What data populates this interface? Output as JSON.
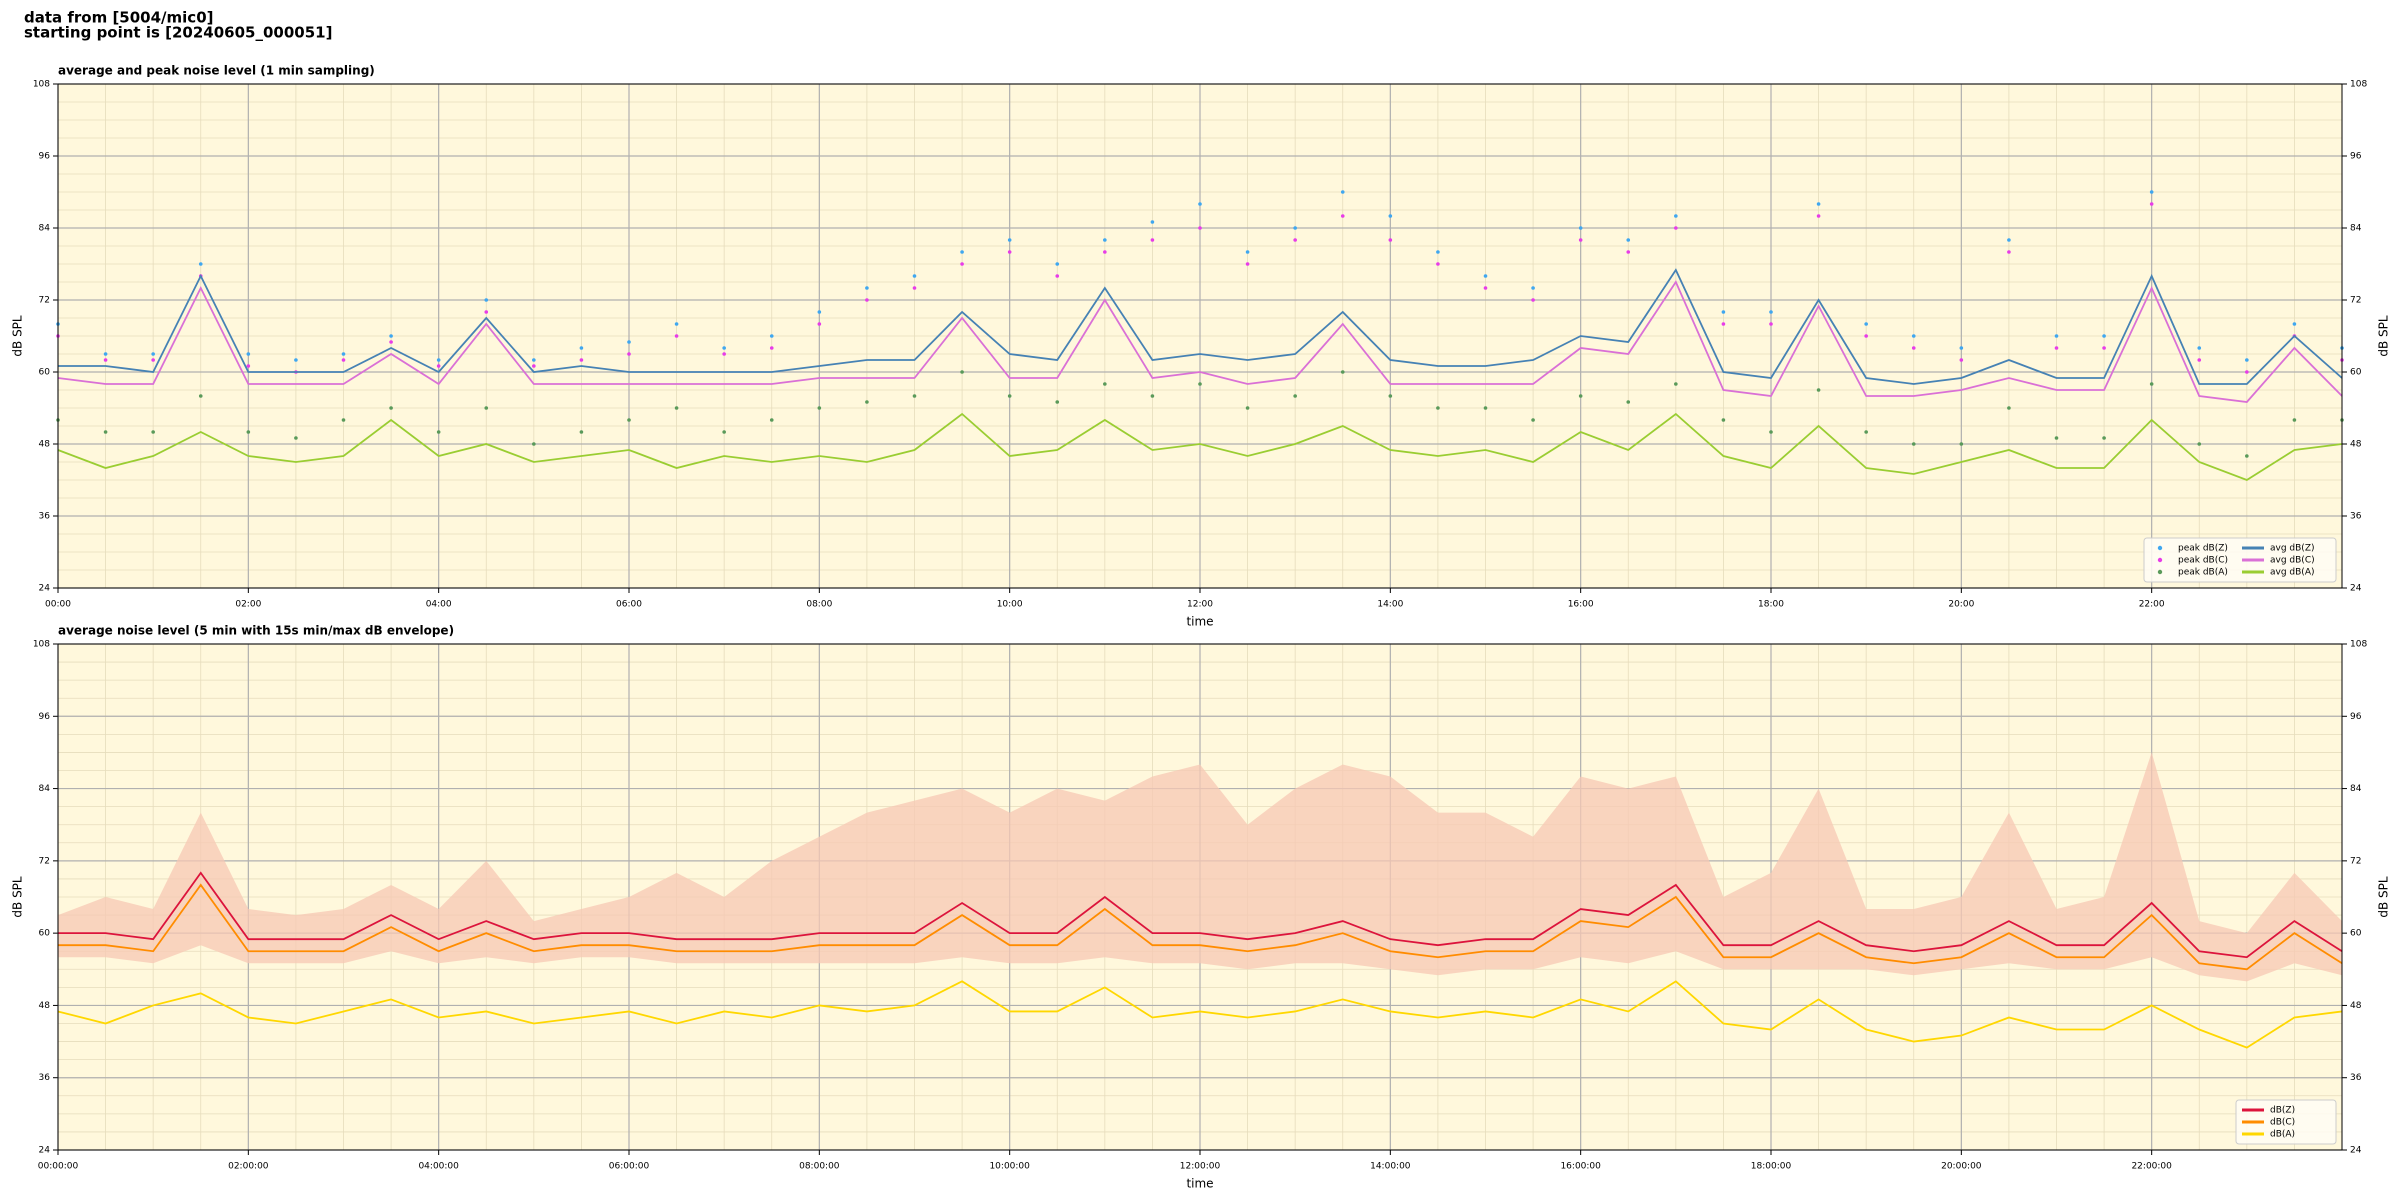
{
  "header": {
    "lines": [
      "data from [5004/mic0]",
      "starting point is [20240605_000051]"
    ]
  },
  "chart_data": [
    {
      "type": "line",
      "title": "average and peak noise level (1 min sampling)",
      "x_label": "time",
      "y_label": "dB SPL",
      "x": [
        0,
        0.5,
        1,
        1.5,
        2,
        2.5,
        3,
        3.5,
        4,
        4.5,
        5,
        5.5,
        6,
        6.5,
        7,
        7.5,
        8,
        8.5,
        9,
        9.5,
        10,
        10.5,
        11,
        11.5,
        12,
        12.5,
        13,
        13.5,
        14,
        14.5,
        15,
        15.5,
        16,
        16.5,
        17,
        17.5,
        18,
        18.5,
        19,
        19.5,
        20,
        20.5,
        21,
        21.5,
        22,
        22.5,
        23,
        23.5,
        24
      ],
      "xlim": [
        0,
        24
      ],
      "ylim": [
        24,
        108
      ],
      "yticks": [
        24,
        36,
        48,
        60,
        72,
        84,
        96,
        108
      ],
      "xticks": [
        {
          "value": 0,
          "label": "00:00"
        },
        {
          "value": 2,
          "label": "02:00"
        },
        {
          "value": 4,
          "label": "04:00"
        },
        {
          "value": 6,
          "label": "06:00"
        },
        {
          "value": 8,
          "label": "08:00"
        },
        {
          "value": 10,
          "label": "10:00"
        },
        {
          "value": 12,
          "label": "12:00"
        },
        {
          "value": 14,
          "label": "14:00"
        },
        {
          "value": 16,
          "label": "16:00"
        },
        {
          "value": 18,
          "label": "18:00"
        },
        {
          "value": 20,
          "label": "20:00"
        },
        {
          "value": 22,
          "label": "22:00"
        }
      ],
      "grid": true,
      "background": "#fff8dc",
      "legend": "lower right",
      "legend_columns": 2,
      "series": [
        {
          "name": "peak dB(Z)",
          "type": "scatter",
          "color": "#3fa7f0",
          "values": [
            68,
            63,
            63,
            78,
            63,
            62,
            63,
            66,
            62,
            72,
            62,
            64,
            65,
            68,
            64,
            66,
            70,
            74,
            76,
            80,
            82,
            78,
            82,
            85,
            88,
            80,
            84,
            90,
            86,
            80,
            76,
            74,
            84,
            82,
            86,
            70,
            70,
            88,
            68,
            66,
            64,
            82,
            66,
            66,
            90,
            64,
            62,
            68,
            64
          ]
        },
        {
          "name": "peak dB(C)",
          "type": "scatter",
          "color": "#e83ce8",
          "values": [
            66,
            62,
            62,
            76,
            61,
            60,
            62,
            65,
            61,
            70,
            61,
            62,
            63,
            66,
            63,
            64,
            68,
            72,
            74,
            78,
            80,
            76,
            80,
            82,
            84,
            78,
            82,
            86,
            82,
            78,
            74,
            72,
            82,
            80,
            84,
            68,
            68,
            86,
            66,
            64,
            62,
            80,
            64,
            64,
            88,
            62,
            60,
            66,
            62
          ]
        },
        {
          "name": "peak dB(A)",
          "type": "scatter",
          "color": "#5a9a5a",
          "values": [
            52,
            50,
            50,
            56,
            50,
            49,
            52,
            54,
            50,
            54,
            48,
            50,
            52,
            54,
            50,
            52,
            54,
            55,
            56,
            60,
            56,
            55,
            58,
            56,
            58,
            54,
            56,
            60,
            56,
            54,
            54,
            52,
            56,
            55,
            58,
            52,
            50,
            57,
            50,
            48,
            48,
            54,
            49,
            49,
            58,
            48,
            46,
            52,
            52
          ]
        },
        {
          "name": "avg dB(Z)",
          "type": "line",
          "color": "#4682b4",
          "values": [
            61,
            61,
            60,
            76,
            60,
            60,
            60,
            64,
            60,
            69,
            60,
            61,
            60,
            60,
            60,
            60,
            61,
            62,
            62,
            70,
            63,
            62,
            74,
            62,
            63,
            62,
            63,
            70,
            62,
            61,
            61,
            62,
            66,
            65,
            77,
            60,
            59,
            72,
            59,
            58,
            59,
            62,
            59,
            59,
            76,
            58,
            58,
            66,
            59
          ]
        },
        {
          "name": "avg dB(C)",
          "type": "line",
          "color": "#da70d6",
          "values": [
            59,
            58,
            58,
            74,
            58,
            58,
            58,
            63,
            58,
            68,
            58,
            58,
            58,
            58,
            58,
            58,
            59,
            59,
            59,
            69,
            59,
            59,
            72,
            59,
            60,
            58,
            59,
            68,
            58,
            58,
            58,
            58,
            64,
            63,
            75,
            57,
            56,
            71,
            56,
            56,
            57,
            59,
            57,
            57,
            74,
            56,
            55,
            64,
            56
          ]
        },
        {
          "name": "avg dB(A)",
          "type": "line",
          "color": "#9acd32",
          "values": [
            47,
            44,
            46,
            50,
            46,
            45,
            46,
            52,
            46,
            48,
            45,
            46,
            47,
            44,
            46,
            45,
            46,
            45,
            47,
            53,
            46,
            47,
            52,
            47,
            48,
            46,
            48,
            51,
            47,
            46,
            47,
            45,
            50,
            47,
            53,
            46,
            44,
            51,
            44,
            43,
            45,
            47,
            44,
            44,
            52,
            45,
            42,
            47,
            48
          ]
        }
      ]
    },
    {
      "type": "line",
      "title": "average noise level (5 min with 15s min/max dB envelope)",
      "x_label": "time",
      "y_label": "dB SPL",
      "x": [
        0,
        0.5,
        1,
        1.5,
        2,
        2.5,
        3,
        3.5,
        4,
        4.5,
        5,
        5.5,
        6,
        6.5,
        7,
        7.5,
        8,
        8.5,
        9,
        9.5,
        10,
        10.5,
        11,
        11.5,
        12,
        12.5,
        13,
        13.5,
        14,
        14.5,
        15,
        15.5,
        16,
        16.5,
        17,
        17.5,
        18,
        18.5,
        19,
        19.5,
        20,
        20.5,
        21,
        21.5,
        22,
        22.5,
        23,
        23.5,
        24
      ],
      "xlim": [
        0,
        24
      ],
      "ylim": [
        24,
        108
      ],
      "yticks": [
        24,
        36,
        48,
        60,
        72,
        84,
        96,
        108
      ],
      "xticks": [
        {
          "value": 0,
          "label": "00:00:00"
        },
        {
          "value": 2,
          "label": "02:00:00"
        },
        {
          "value": 4,
          "label": "04:00:00"
        },
        {
          "value": 6,
          "label": "06:00:00"
        },
        {
          "value": 8,
          "label": "08:00:00"
        },
        {
          "value": 10,
          "label": "10:00:00"
        },
        {
          "value": 12,
          "label": "12:00:00"
        },
        {
          "value": 14,
          "label": "14:00:00"
        },
        {
          "value": 16,
          "label": "16:00:00"
        },
        {
          "value": 18,
          "label": "18:00:00"
        },
        {
          "value": 20,
          "label": "20:00:00"
        },
        {
          "value": 22,
          "label": "22:00:00"
        }
      ],
      "grid": true,
      "background": "#fff8dc",
      "legend": "lower right",
      "legend_columns": 1,
      "envelope": {
        "color": "#f7c8b4",
        "high": [
          63,
          66,
          64,
          80,
          64,
          63,
          64,
          68,
          64,
          72,
          62,
          64,
          66,
          70,
          66,
          72,
          76,
          80,
          82,
          84,
          80,
          84,
          82,
          86,
          88,
          78,
          84,
          88,
          86,
          80,
          80,
          76,
          86,
          84,
          86,
          66,
          70,
          84,
          64,
          64,
          66,
          80,
          64,
          66,
          90,
          62,
          60,
          70,
          62
        ],
        "low": [
          56,
          56,
          55,
          58,
          55,
          55,
          55,
          57,
          55,
          56,
          55,
          56,
          56,
          55,
          55,
          55,
          55,
          55,
          55,
          56,
          55,
          55,
          56,
          55,
          55,
          54,
          55,
          55,
          54,
          53,
          54,
          54,
          56,
          55,
          57,
          54,
          54,
          54,
          54,
          53,
          54,
          55,
          54,
          54,
          56,
          53,
          52,
          55,
          53
        ]
      },
      "series": [
        {
          "name": "dB(Z)",
          "type": "line",
          "color": "#dc143c",
          "values": [
            60,
            60,
            59,
            70,
            59,
            59,
            59,
            63,
            59,
            62,
            59,
            60,
            60,
            59,
            59,
            59,
            60,
            60,
            60,
            65,
            60,
            60,
            66,
            60,
            60,
            59,
            60,
            62,
            59,
            58,
            59,
            59,
            64,
            63,
            68,
            58,
            58,
            62,
            58,
            57,
            58,
            62,
            58,
            58,
            65,
            57,
            56,
            62,
            57
          ]
        },
        {
          "name": "dB(C)",
          "type": "line",
          "color": "#ff8c00",
          "values": [
            58,
            58,
            57,
            68,
            57,
            57,
            57,
            61,
            57,
            60,
            57,
            58,
            58,
            57,
            57,
            57,
            58,
            58,
            58,
            63,
            58,
            58,
            64,
            58,
            58,
            57,
            58,
            60,
            57,
            56,
            57,
            57,
            62,
            61,
            66,
            56,
            56,
            60,
            56,
            55,
            56,
            60,
            56,
            56,
            63,
            55,
            54,
            60,
            55
          ]
        },
        {
          "name": "dB(A)",
          "type": "line",
          "color": "#ffd700",
          "values": [
            47,
            45,
            48,
            50,
            46,
            45,
            47,
            49,
            46,
            47,
            45,
            46,
            47,
            45,
            47,
            46,
            48,
            47,
            48,
            52,
            47,
            47,
            51,
            46,
            47,
            46,
            47,
            49,
            47,
            46,
            47,
            46,
            49,
            47,
            52,
            45,
            44,
            49,
            44,
            42,
            43,
            46,
            44,
            44,
            48,
            44,
            41,
            46,
            47
          ]
        }
      ]
    }
  ]
}
